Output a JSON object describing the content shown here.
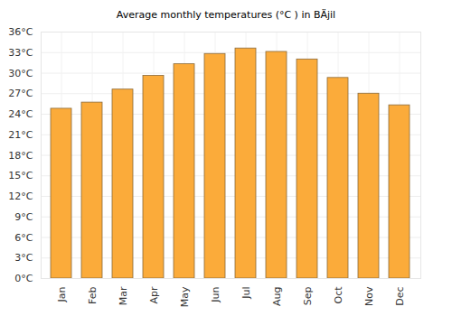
{
  "chart_data": {
    "type": "bar",
    "title": "Average monthly temperatures (°C ) in BÄjil",
    "categories": [
      "Jan",
      "Feb",
      "Mar",
      "Apr",
      "May",
      "Jun",
      "Jul",
      "Aug",
      "Sep",
      "Oct",
      "Nov",
      "Dec"
    ],
    "values": [
      24.8,
      25.7,
      27.6,
      29.6,
      31.3,
      32.8,
      33.6,
      33.1,
      32.0,
      29.3,
      27.0,
      25.3
    ],
    "color": "#fbab3a",
    "ylim": [
      0,
      36
    ],
    "yticks": [
      {
        "value": 0,
        "label": "0°C"
      },
      {
        "value": 3,
        "label": "3°C"
      },
      {
        "value": 6,
        "label": "6°C"
      },
      {
        "value": 9,
        "label": "9°C"
      },
      {
        "value": 12,
        "label": "12°C"
      },
      {
        "value": 15,
        "label": "15°C"
      },
      {
        "value": 18,
        "label": "18°C"
      },
      {
        "value": 21,
        "label": "21°C"
      },
      {
        "value": 24,
        "label": "24°C"
      },
      {
        "value": 27,
        "label": "27°C"
      },
      {
        "value": 30,
        "label": "30°C"
      },
      {
        "value": 33,
        "label": "33°C"
      },
      {
        "value": 36,
        "label": "36°C"
      }
    ],
    "grid": true
  }
}
